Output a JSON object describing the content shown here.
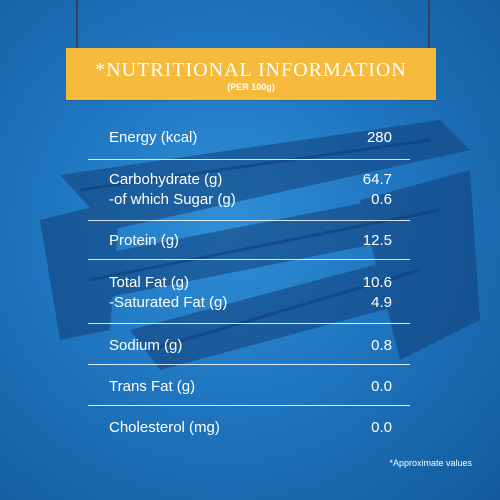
{
  "banner": {
    "title": "*NUTRITIONAL INFORMATION",
    "subtitle": "(PER 100g)"
  },
  "rows": [
    {
      "lines": [
        {
          "label": "Energy (kcal)",
          "value": "280"
        }
      ]
    },
    {
      "lines": [
        {
          "label": "Carbohydrate (g)",
          "value": "64.7"
        },
        {
          "label": "-of which Sugar (g)",
          "value": "0.6"
        }
      ]
    },
    {
      "lines": [
        {
          "label": "Protein (g)",
          "value": "12.5"
        }
      ]
    },
    {
      "lines": [
        {
          "label": "Total Fat (g)",
          "value": "10.6"
        },
        {
          "label": "-Saturated Fat (g)",
          "value": "4.9"
        }
      ]
    },
    {
      "lines": [
        {
          "label": "Sodium (g)",
          "value": "0.8"
        }
      ]
    },
    {
      "lines": [
        {
          "label": "Trans Fat (g)",
          "value": "0.0"
        }
      ]
    },
    {
      "lines": [
        {
          "label": "Cholesterol (mg)",
          "value": "0.0"
        }
      ]
    }
  ],
  "footnote": "*Approximate values",
  "colors": {
    "background": "#1f76c0",
    "banner": "#f6bb3c",
    "text": "#ffffff"
  }
}
